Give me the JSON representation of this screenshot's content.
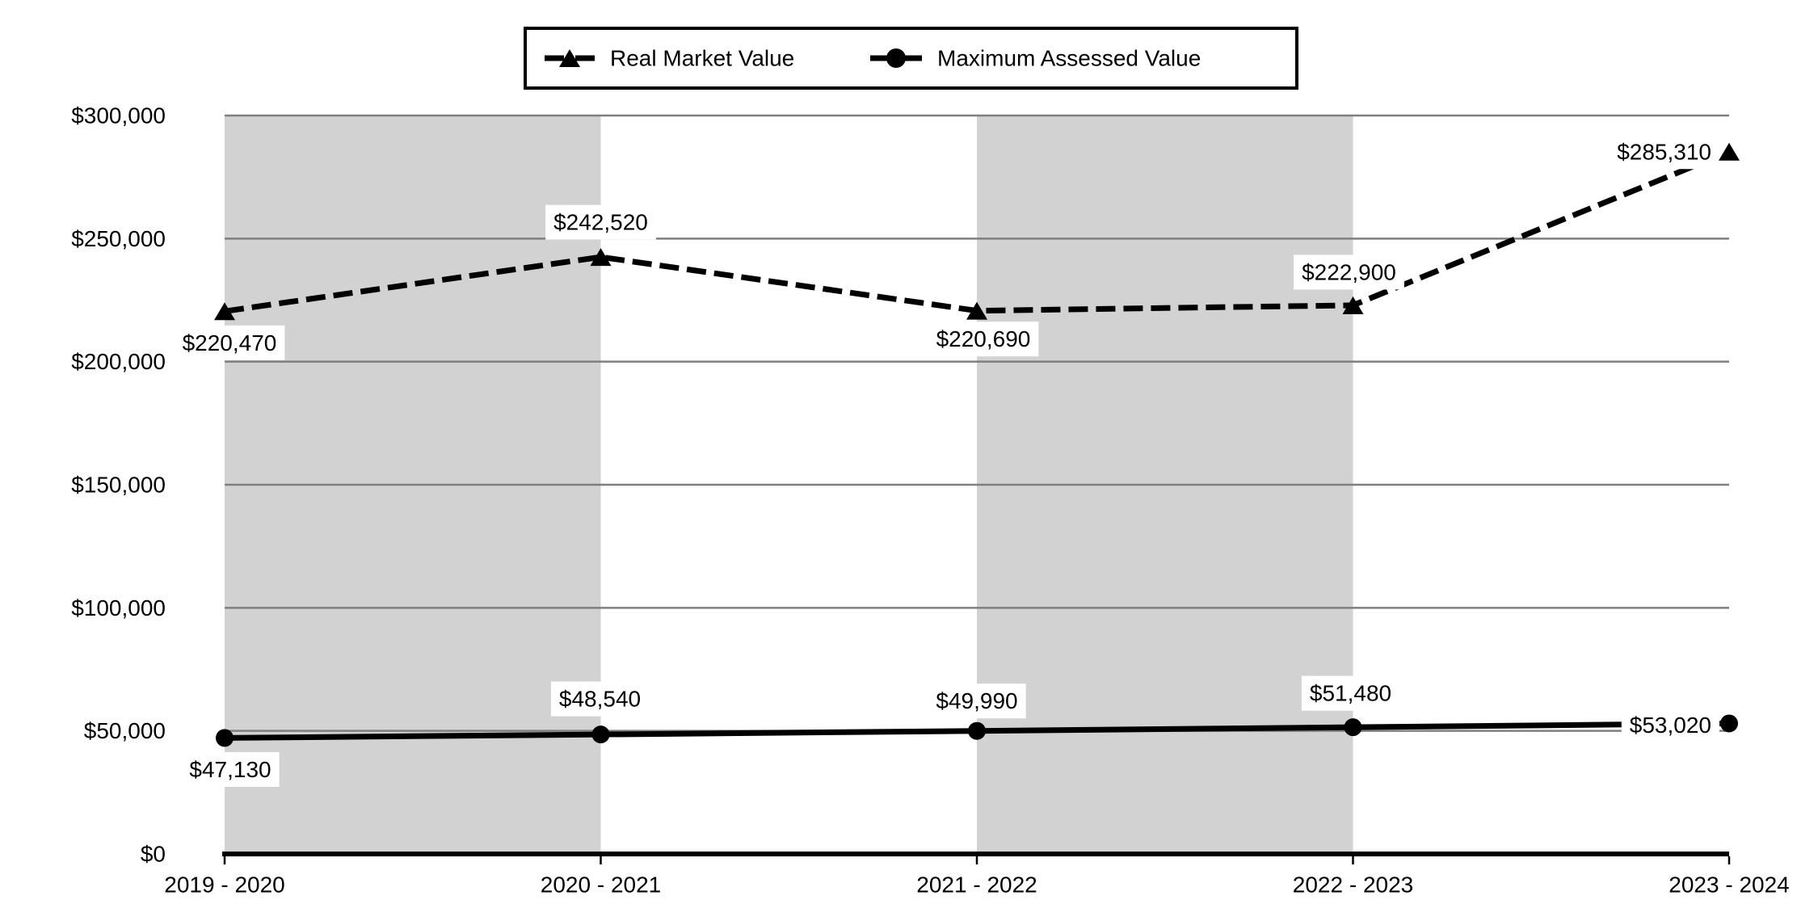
{
  "chart_data": {
    "type": "line",
    "title": "",
    "categories": [
      "2019 - 2020",
      "2020 - 2021",
      "2021 - 2022",
      "2022 - 2023",
      "2023 - 2024"
    ],
    "series": [
      {
        "name": "Real Market Value",
        "marker": "triangle",
        "line_style": "dashed",
        "color": "#000000",
        "values": [
          220470,
          242520,
          220690,
          222900,
          285310
        ],
        "labels": [
          "$220,470",
          "$242,520",
          "$220,690",
          "$222,900",
          "$285,310"
        ],
        "label_offsets": [
          {
            "dx": 6,
            "dy": 39,
            "anchor": "middle"
          },
          {
            "dx": 0,
            "dy": -43,
            "anchor": "middle"
          },
          {
            "dx": 8,
            "dy": 35,
            "anchor": "middle"
          },
          {
            "dx": -5,
            "dy": -41,
            "anchor": "middle"
          },
          {
            "dx": -22,
            "dy": 0,
            "anchor": "end"
          }
        ]
      },
      {
        "name": "Maximum Assessed Value",
        "marker": "circle",
        "line_style": "solid",
        "color": "#000000",
        "values": [
          47130,
          48540,
          49990,
          51480,
          53020
        ],
        "labels": [
          "$47,130",
          "$48,540",
          "$49,990",
          "$51,480",
          "$53,020"
        ],
        "label_offsets": [
          {
            "dx": 7,
            "dy": 39,
            "anchor": "middle"
          },
          {
            "dx": -1,
            "dy": -44,
            "anchor": "middle"
          },
          {
            "dx": 0,
            "dy": -37,
            "anchor": "middle"
          },
          {
            "dx": -3,
            "dy": -42,
            "anchor": "middle"
          },
          {
            "dx": -22,
            "dy": 2,
            "anchor": "end"
          }
        ]
      }
    ],
    "ylim": [
      0,
      300000
    ],
    "y_ticks": [
      {
        "value": 0,
        "label": "$0"
      },
      {
        "value": 50000,
        "label": "$50,000"
      },
      {
        "value": 100000,
        "label": "$100,000"
      },
      {
        "value": 150000,
        "label": "$150,000"
      },
      {
        "value": 200000,
        "label": "$200,000"
      },
      {
        "value": 250000,
        "label": "$250,000"
      },
      {
        "value": 300000,
        "label": "$300,000"
      }
    ],
    "legend_position": "top-center",
    "grid": "horizontal",
    "shaded_column_pairs": [
      [
        0,
        1
      ],
      [
        2,
        3
      ]
    ],
    "colors": {
      "band": "#d2d2d2",
      "gridline": "#7f7f7f",
      "axis": "#000000",
      "label_background": "#ffffff",
      "text": "#000000"
    }
  }
}
